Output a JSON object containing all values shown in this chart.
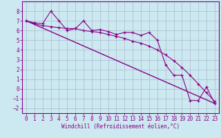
{
  "xlabel": "Windchill (Refroidissement éolien,°C)",
  "bg_color": "#cce8f0",
  "grid_color": "#aabbcc",
  "line_color": "#880088",
  "line1_x": [
    0,
    1,
    2,
    3,
    4,
    5,
    6,
    7,
    8,
    9,
    10,
    11,
    12,
    13,
    14,
    15,
    16,
    17,
    18,
    19,
    20,
    21,
    22,
    23
  ],
  "line1_y": [
    7.0,
    6.8,
    6.7,
    8.0,
    7.0,
    6.0,
    6.2,
    7.0,
    6.0,
    6.1,
    5.9,
    5.6,
    5.8,
    5.8,
    5.5,
    5.8,
    5.0,
    2.5,
    1.4,
    1.4,
    -1.2,
    -1.2,
    0.2,
    -1.5
  ],
  "line2_x": [
    0,
    1,
    2,
    3,
    4,
    5,
    6,
    7,
    8,
    9,
    10,
    11,
    12,
    13,
    14,
    15,
    16,
    17,
    18,
    19,
    20,
    21,
    22,
    23
  ],
  "line2_y": [
    7.0,
    6.7,
    6.5,
    6.4,
    6.3,
    6.2,
    6.2,
    6.0,
    5.9,
    5.8,
    5.6,
    5.4,
    5.2,
    4.9,
    4.7,
    4.4,
    4.0,
    3.5,
    2.9,
    2.2,
    1.4,
    0.5,
    -0.4,
    -1.3
  ],
  "line3_x": [
    0,
    23
  ],
  "line3_y": [
    7.0,
    -1.5
  ],
  "ylim": [
    -2.5,
    9.0
  ],
  "xlim": [
    -0.5,
    23.5
  ],
  "yticks": [
    -2,
    -1,
    0,
    1,
    2,
    3,
    4,
    5,
    6,
    7,
    8
  ],
  "xticks": [
    0,
    1,
    2,
    3,
    4,
    5,
    6,
    7,
    8,
    9,
    10,
    11,
    12,
    13,
    14,
    15,
    16,
    17,
    18,
    19,
    20,
    21,
    22,
    23
  ]
}
